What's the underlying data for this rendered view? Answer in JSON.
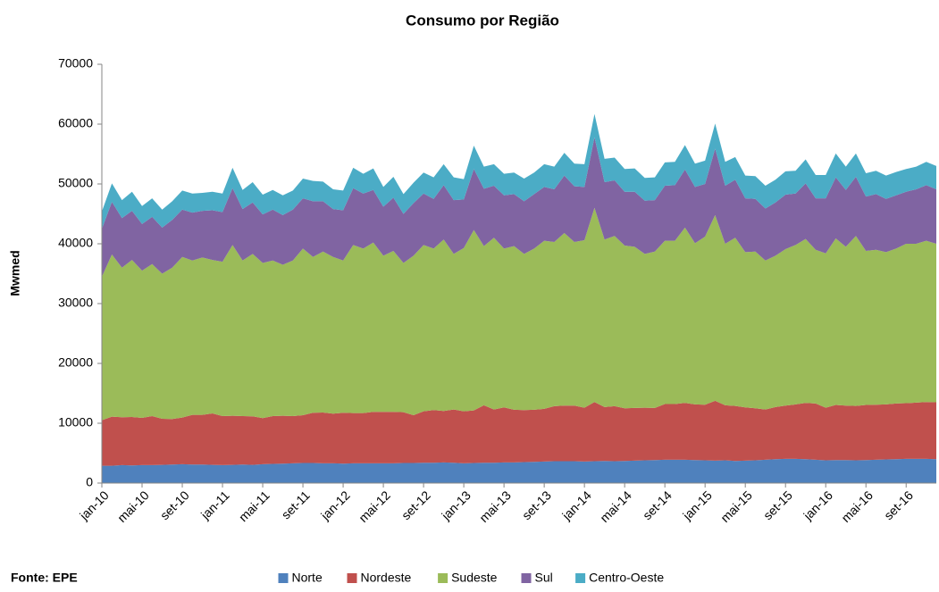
{
  "chart_data": {
    "type": "stacked_area",
    "title": "Consumo por Região",
    "y_label": "Mwmed",
    "source": "Fonte: EPE",
    "legend": "bottom",
    "ylim": [
      0,
      70000
    ],
    "yticks": [
      0,
      10000,
      20000,
      30000,
      40000,
      50000,
      60000,
      70000
    ],
    "categories": [
      "jan-10",
      null,
      null,
      null,
      "mai-10",
      null,
      null,
      null,
      "set-10",
      null,
      null,
      null,
      "jan-11",
      null,
      null,
      null,
      "mai-11",
      null,
      null,
      null,
      "set-11",
      null,
      null,
      null,
      "jan-12",
      null,
      null,
      null,
      "mai-12",
      null,
      null,
      null,
      "set-12",
      null,
      null,
      null,
      "jan-13",
      null,
      null,
      null,
      "mai-13",
      null,
      null,
      null,
      "set-13",
      null,
      null,
      null,
      "jan-14",
      null,
      null,
      null,
      "mai-14",
      null,
      null,
      null,
      "set-14",
      null,
      null,
      null,
      "jan-15",
      null,
      null,
      null,
      "mai-15",
      null,
      null,
      null,
      "set-15",
      null,
      null,
      null,
      "jan-16",
      null,
      null,
      null,
      "mai-16",
      null,
      null,
      null,
      "set-16",
      null,
      null,
      null
    ],
    "series": [
      {
        "name": "Norte",
        "color": "#4f81bd",
        "values": [
          2900,
          2900,
          3000,
          2950,
          3000,
          3000,
          3050,
          3100,
          3150,
          3100,
          3100,
          3050,
          3000,
          3050,
          3100,
          3050,
          3150,
          3200,
          3250,
          3300,
          3350,
          3350,
          3300,
          3300,
          3250,
          3300,
          3300,
          3300,
          3300,
          3300,
          3350,
          3350,
          3400,
          3400,
          3450,
          3400,
          3300,
          3350,
          3400,
          3400,
          3450,
          3450,
          3500,
          3550,
          3600,
          3650,
          3650,
          3650,
          3600,
          3650,
          3700,
          3650,
          3700,
          3750,
          3800,
          3850,
          3900,
          3900,
          3900,
          3850,
          3800,
          3750,
          3800,
          3700,
          3750,
          3800,
          3900,
          4000,
          4050,
          4050,
          4000,
          3900,
          3800,
          3850,
          3850,
          3800,
          3850,
          3900,
          3950,
          4000,
          4050,
          4050,
          4050,
          4000
        ]
      },
      {
        "name": "Nordeste",
        "color": "#c0504d",
        "values": [
          7600,
          8200,
          8000,
          8100,
          7900,
          8200,
          7700,
          7600,
          7800,
          8300,
          8300,
          8600,
          8200,
          8200,
          8100,
          8100,
          7700,
          8000,
          8000,
          7900,
          8000,
          8400,
          8500,
          8300,
          8500,
          8400,
          8400,
          8600,
          8600,
          8600,
          8500,
          8000,
          8600,
          8800,
          8600,
          8900,
          8700,
          8800,
          9600,
          8900,
          9200,
          8800,
          8700,
          8700,
          8800,
          9200,
          9300,
          9300,
          9000,
          9900,
          9000,
          9200,
          8800,
          8800,
          8800,
          8700,
          9300,
          9300,
          9500,
          9300,
          9300,
          10000,
          9200,
          9200,
          8900,
          8700,
          8400,
          8700,
          8900,
          9100,
          9400,
          9400,
          8800,
          9200,
          9100,
          9100,
          9200,
          9200,
          9200,
          9300,
          9300,
          9400,
          9500,
          9500
        ]
      },
      {
        "name": "Sudeste",
        "color": "#9bbb59",
        "values": [
          24000,
          27100,
          25000,
          26250,
          24600,
          25400,
          24250,
          25300,
          26850,
          25800,
          26300,
          25650,
          25800,
          28550,
          26000,
          27150,
          25950,
          26000,
          25250,
          26000,
          27850,
          26050,
          26900,
          26200,
          25450,
          28100,
          27500,
          28300,
          26100,
          26900,
          24950,
          26650,
          27800,
          27000,
          28650,
          26000,
          27300,
          30150,
          26600,
          28700,
          26550,
          27350,
          26100,
          26950,
          28100,
          27450,
          28850,
          27350,
          28000,
          32450,
          28000,
          28450,
          27200,
          26950,
          25700,
          26150,
          27300,
          27300,
          29300,
          26950,
          28100,
          31050,
          27000,
          28100,
          25950,
          26200,
          24900,
          25300,
          26150,
          26650,
          27400,
          25700,
          25800,
          27850,
          26550,
          28400,
          25750,
          25900,
          25450,
          25900,
          26650,
          26550,
          26950,
          26500
        ]
      },
      {
        "name": "Sul",
        "color": "#8064a2",
        "values": [
          8000,
          8800,
          8300,
          8200,
          7800,
          7900,
          7700,
          8000,
          7900,
          8000,
          7800,
          8300,
          8300,
          9500,
          8600,
          8600,
          8100,
          8500,
          8300,
          8500,
          8400,
          9300,
          8400,
          8000,
          8400,
          9500,
          9200,
          8800,
          8200,
          8900,
          8200,
          8800,
          8600,
          8300,
          9100,
          9000,
          8100,
          10200,
          9600,
          8700,
          8900,
          8700,
          8800,
          9100,
          9000,
          8800,
          9600,
          9300,
          8900,
          11800,
          9600,
          9300,
          9000,
          9200,
          8900,
          8600,
          9200,
          9300,
          9700,
          9400,
          8800,
          11100,
          9700,
          9700,
          9000,
          8800,
          8700,
          8900,
          9100,
          8600,
          9300,
          8600,
          9200,
          10200,
          9500,
          9900,
          9100,
          9300,
          8900,
          8900,
          8700,
          9100,
          9300,
          9100
        ]
      },
      {
        "name": "Centro-Oeste",
        "color": "#4bacc6",
        "values": [
          2900,
          3100,
          3000,
          3200,
          3000,
          3100,
          3000,
          3100,
          3200,
          3200,
          3000,
          3100,
          3100,
          3400,
          3200,
          3400,
          3300,
          3300,
          3300,
          3200,
          3300,
          3400,
          3300,
          3300,
          3300,
          3400,
          3300,
          3600,
          3300,
          3500,
          3300,
          3400,
          3500,
          3600,
          3500,
          3800,
          3400,
          3900,
          3700,
          3600,
          3600,
          3600,
          3800,
          3600,
          3800,
          3800,
          3800,
          3800,
          3800,
          3900,
          3900,
          3800,
          3800,
          3900,
          3800,
          3800,
          3900,
          3900,
          4100,
          3900,
          3900,
          4200,
          4000,
          3800,
          3800,
          3800,
          3800,
          3800,
          3900,
          3800,
          4000,
          3900,
          3900,
          4000,
          3900,
          3900,
          3900,
          3900,
          3900,
          3900,
          3800,
          3800,
          3900,
          3900
        ]
      }
    ]
  }
}
